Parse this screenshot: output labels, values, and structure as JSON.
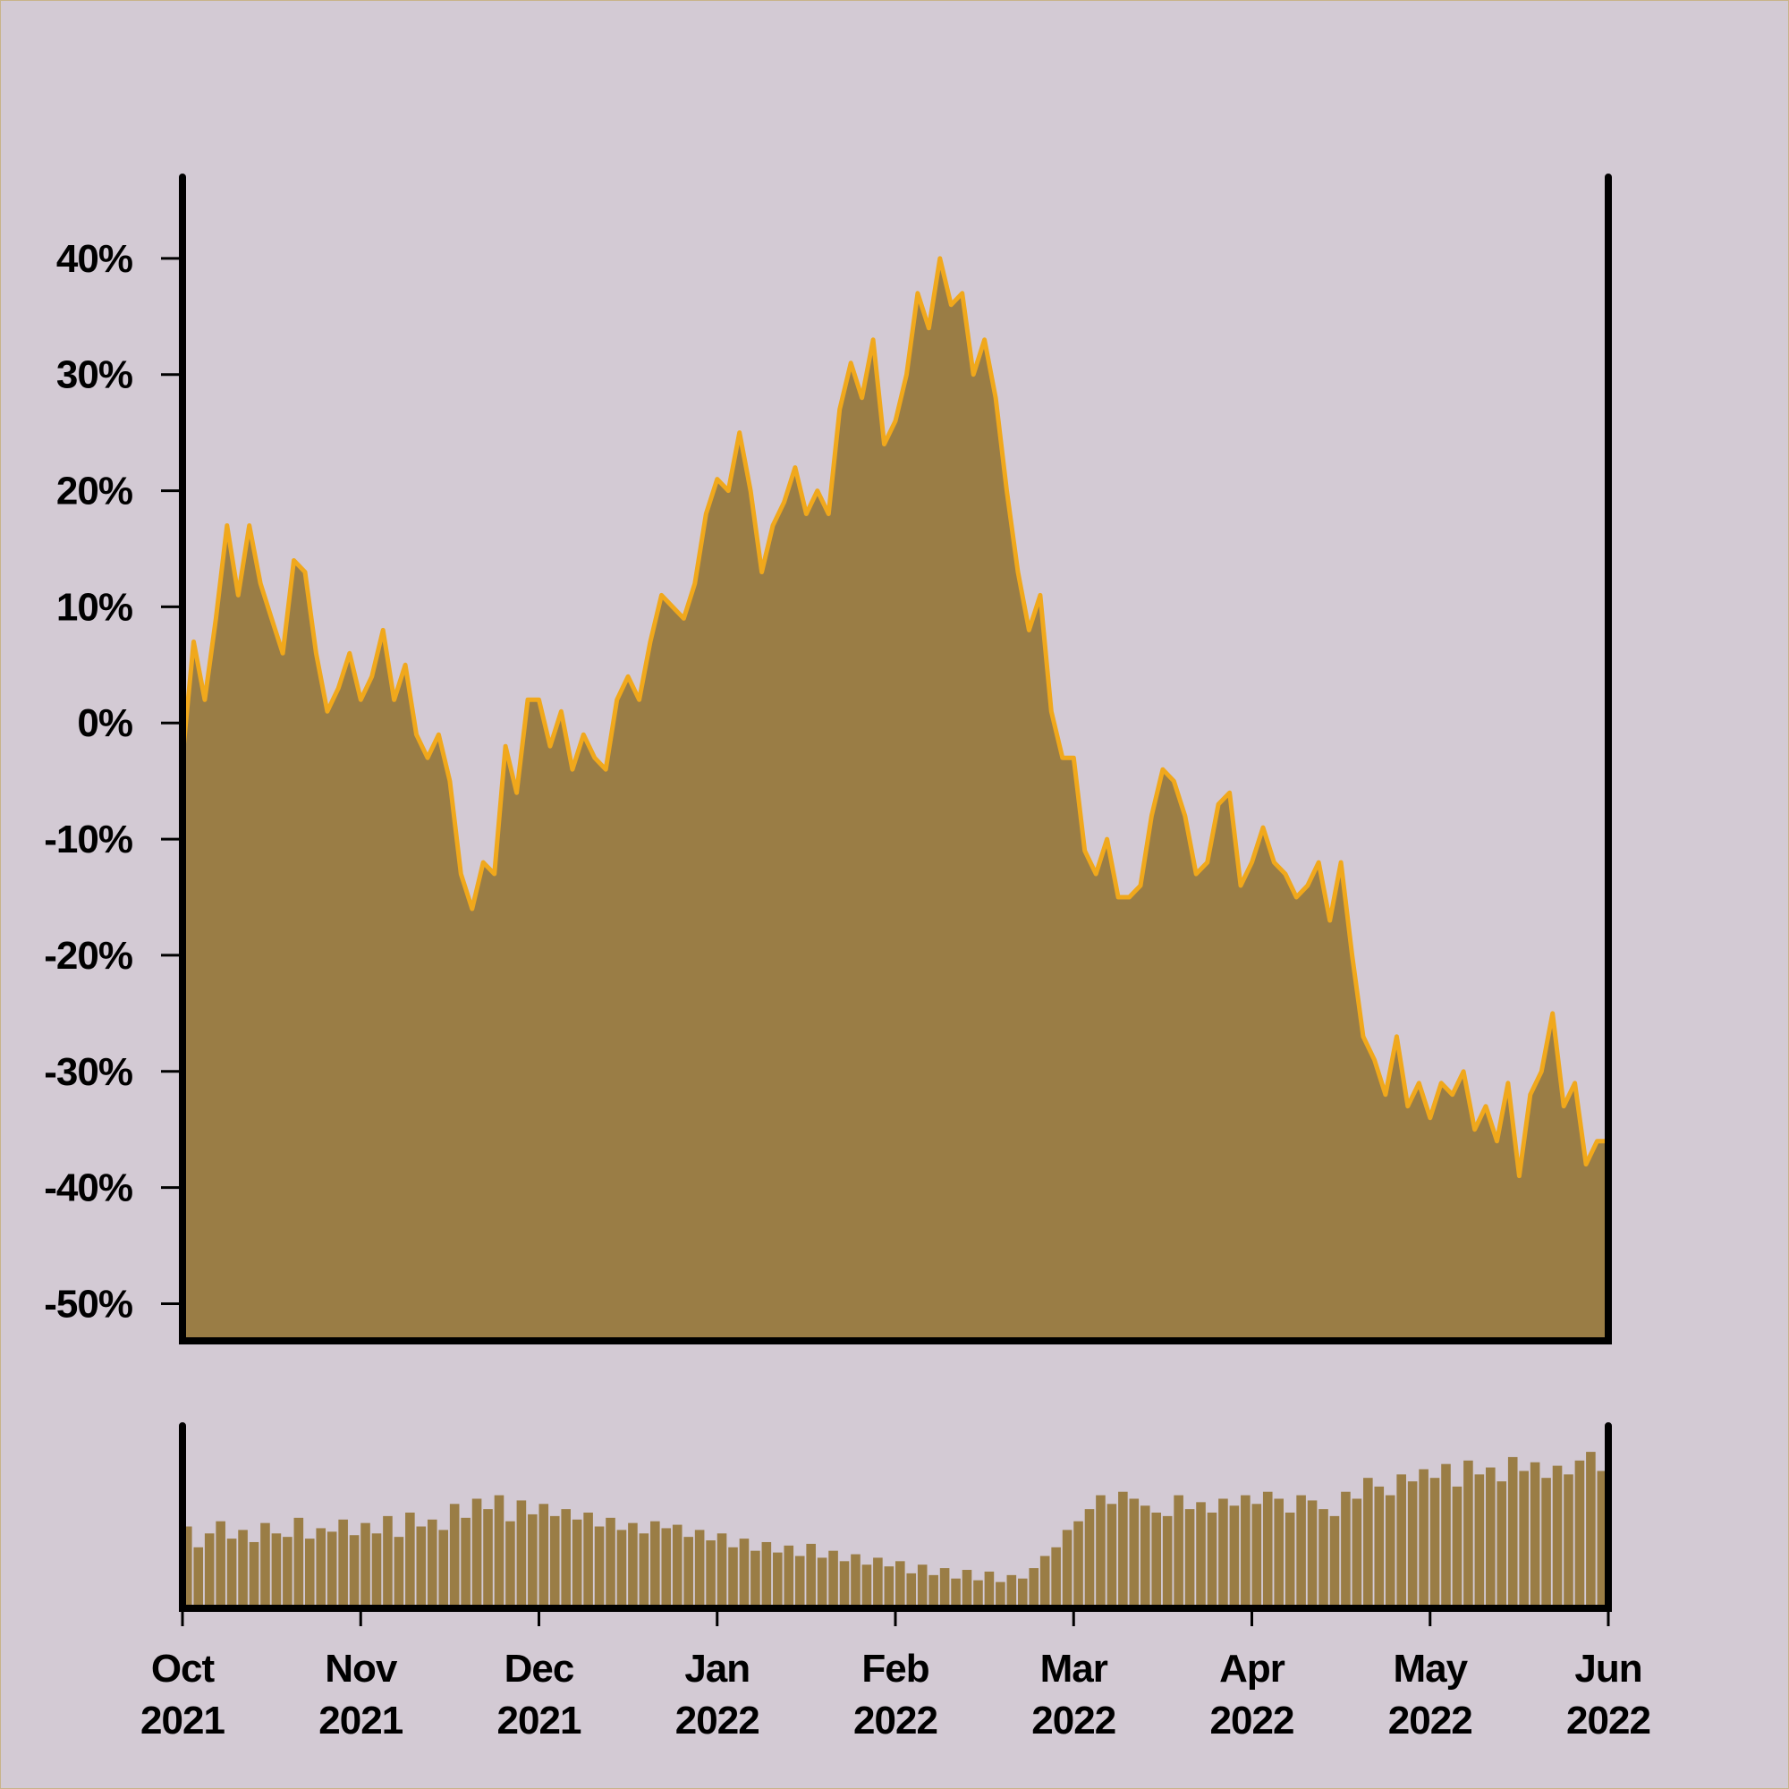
{
  "chart_data": [
    {
      "type": "area",
      "color": "#9a7d45",
      "line_color": "#f0a81c",
      "xlim": [
        0,
        8
      ],
      "ylim": [
        -53.2,
        47
      ],
      "yticks": [
        {
          "value": -50,
          "label": "-50%"
        },
        {
          "value": -40,
          "label": "-40%"
        },
        {
          "value": -30,
          "label": "-30%"
        },
        {
          "value": -20,
          "label": "-20%"
        },
        {
          "value": -10,
          "label": "-10%"
        },
        {
          "value": 0,
          "label": "0%"
        },
        {
          "value": 10,
          "label": "10%"
        },
        {
          "value": 20,
          "label": "20%"
        },
        {
          "value": 30,
          "label": "30%"
        },
        {
          "value": 40,
          "label": "40%"
        }
      ],
      "values": [
        -3,
        7,
        2,
        9,
        17,
        11,
        17,
        12,
        9,
        6,
        14,
        13,
        6,
        1,
        3,
        6,
        2,
        4,
        8,
        2,
        5,
        -1,
        -3,
        -1,
        -5,
        -13,
        -16,
        -12,
        -13,
        -2,
        -6,
        2,
        2,
        -2,
        1,
        -4,
        -1,
        -3,
        -4,
        2,
        4,
        2,
        7,
        11,
        10,
        9,
        12,
        18,
        21,
        20,
        25,
        20,
        13,
        17,
        19,
        22,
        18,
        20,
        18,
        27,
        31,
        28,
        33,
        24,
        26,
        30,
        37,
        34,
        40,
        36,
        37,
        30,
        33,
        28,
        20,
        13,
        8,
        11,
        1,
        -3,
        -3,
        -11,
        -13,
        -10,
        -15,
        -15,
        -14,
        -8,
        -4,
        -5,
        -8,
        -13,
        -12,
        -7,
        -6,
        -14,
        -12,
        -9,
        -12,
        -13,
        -15,
        -14,
        -12,
        -17,
        -12,
        -20,
        -27,
        -29,
        -32,
        -27,
        -33,
        -31,
        -34,
        -31,
        -32,
        -30,
        -35,
        -33,
        -36,
        -31,
        -39,
        -32,
        -30,
        -25,
        -33,
        -31,
        -38,
        -36,
        -36
      ]
    },
    {
      "type": "bar",
      "color": "#9a7d45",
      "xlim": [
        0,
        8
      ],
      "ylim": [
        0,
        100
      ],
      "xticks": [
        {
          "value": 0,
          "label": "Oct 2021"
        },
        {
          "value": 1,
          "label": "Nov 2021"
        },
        {
          "value": 2,
          "label": "Dec 2021"
        },
        {
          "value": 3,
          "label": "Jan 2022"
        },
        {
          "value": 4,
          "label": "Feb 2022"
        },
        {
          "value": 5,
          "label": "Mar 2022"
        },
        {
          "value": 6,
          "label": "Apr 2022"
        },
        {
          "value": 7,
          "label": "May 2022"
        },
        {
          "value": 8,
          "label": "Jun 2022"
        }
      ],
      "values": [
        42,
        30,
        38,
        45,
        35,
        40,
        33,
        44,
        38,
        36,
        47,
        35,
        41,
        39,
        46,
        37,
        44,
        38,
        48,
        36,
        50,
        42,
        46,
        40,
        55,
        47,
        58,
        52,
        60,
        45,
        57,
        49,
        55,
        48,
        52,
        46,
        50,
        42,
        47,
        40,
        44,
        38,
        45,
        41,
        43,
        36,
        40,
        34,
        38,
        30,
        35,
        28,
        33,
        27,
        31,
        25,
        32,
        24,
        28,
        22,
        26,
        20,
        24,
        19,
        22,
        15,
        20,
        14,
        18,
        12,
        17,
        11,
        16,
        10,
        14,
        12,
        18,
        25,
        30,
        40,
        45,
        52,
        60,
        55,
        62,
        58,
        54,
        50,
        48,
        60,
        52,
        56,
        50,
        58,
        54,
        60,
        55,
        62,
        58,
        50,
        60,
        57,
        52,
        48,
        62,
        58,
        70,
        65,
        60,
        72,
        68,
        75,
        70,
        78,
        65,
        80,
        72,
        76,
        68,
        82,
        74,
        79,
        70,
        77,
        72,
        80,
        85,
        74
      ]
    }
  ]
}
